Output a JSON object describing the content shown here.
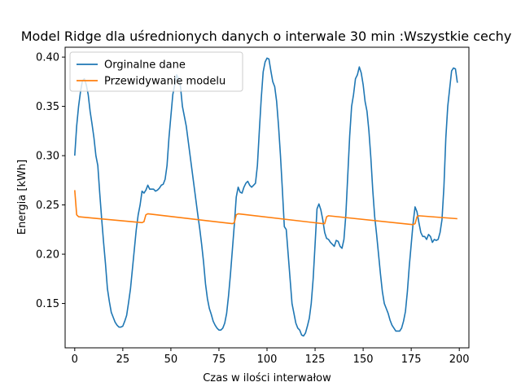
{
  "chart_data": {
    "type": "line",
    "title": "Model Ridge dla uśrednionych danych o interwale 30 min :Wszystkie cechy",
    "xlabel": "Czas w ilości interwałow",
    "ylabel": "Energia [kWh]",
    "xlim": [
      -5,
      205
    ],
    "ylim": [
      0.105,
      0.41
    ],
    "x_ticks": [
      0,
      25,
      50,
      75,
      100,
      125,
      150,
      175,
      200
    ],
    "y_ticks": [
      0.15,
      0.2,
      0.25,
      0.3,
      0.35,
      0.4
    ],
    "grid": false,
    "legend": "top-left",
    "series": [
      {
        "name": "Orginalne dane",
        "color": "#1f77b4",
        "points": [
          [
            0,
            0.3
          ],
          [
            1,
            0.33
          ],
          [
            2,
            0.35
          ],
          [
            3,
            0.365
          ],
          [
            4,
            0.376
          ],
          [
            5,
            0.378
          ],
          [
            6,
            0.372
          ],
          [
            7,
            0.362
          ],
          [
            8,
            0.345
          ],
          [
            9,
            0.332
          ],
          [
            10,
            0.318
          ],
          [
            11,
            0.3
          ],
          [
            12,
            0.29
          ],
          [
            13,
            0.262
          ],
          [
            14,
            0.236
          ],
          [
            15,
            0.212
          ],
          [
            16,
            0.19
          ],
          [
            17,
            0.165
          ],
          [
            18,
            0.152
          ],
          [
            19,
            0.141
          ],
          [
            20,
            0.136
          ],
          [
            21,
            0.131
          ],
          [
            22,
            0.128
          ],
          [
            23,
            0.126
          ],
          [
            24,
            0.126
          ],
          [
            25,
            0.127
          ],
          [
            26,
            0.132
          ],
          [
            27,
            0.138
          ],
          [
            28,
            0.151
          ],
          [
            29,
            0.165
          ],
          [
            30,
            0.185
          ],
          [
            31,
            0.205
          ],
          [
            32,
            0.225
          ],
          [
            33,
            0.24
          ],
          [
            34,
            0.25
          ],
          [
            35,
            0.264
          ],
          [
            36,
            0.262
          ],
          [
            37,
            0.265
          ],
          [
            38,
            0.27
          ],
          [
            39,
            0.266
          ],
          [
            40,
            0.266
          ],
          [
            41,
            0.266
          ],
          [
            42,
            0.264
          ],
          [
            43,
            0.265
          ],
          [
            44,
            0.267
          ],
          [
            45,
            0.27
          ],
          [
            46,
            0.271
          ],
          [
            47,
            0.276
          ],
          [
            48,
            0.29
          ],
          [
            49,
            0.318
          ],
          [
            50,
            0.34
          ],
          [
            51,
            0.362
          ],
          [
            52,
            0.372
          ],
          [
            53,
            0.382
          ],
          [
            54,
            0.378
          ],
          [
            55,
            0.37
          ],
          [
            56,
            0.35
          ],
          [
            57,
            0.34
          ],
          [
            58,
            0.33
          ],
          [
            59,
            0.315
          ],
          [
            60,
            0.3
          ],
          [
            61,
            0.285
          ],
          [
            62,
            0.27
          ],
          [
            63,
            0.255
          ],
          [
            64,
            0.24
          ],
          [
            65,
            0.226
          ],
          [
            66,
            0.21
          ],
          [
            67,
            0.192
          ],
          [
            68,
            0.17
          ],
          [
            69,
            0.155
          ],
          [
            70,
            0.145
          ],
          [
            71,
            0.139
          ],
          [
            72,
            0.132
          ],
          [
            73,
            0.128
          ],
          [
            74,
            0.125
          ],
          [
            75,
            0.123
          ],
          [
            76,
            0.123
          ],
          [
            77,
            0.125
          ],
          [
            78,
            0.13
          ],
          [
            79,
            0.14
          ],
          [
            80,
            0.158
          ],
          [
            81,
            0.18
          ],
          [
            82,
            0.205
          ],
          [
            83,
            0.23
          ],
          [
            84,
            0.258
          ],
          [
            85,
            0.268
          ],
          [
            86,
            0.263
          ],
          [
            87,
            0.262
          ],
          [
            88,
            0.268
          ],
          [
            89,
            0.272
          ],
          [
            90,
            0.274
          ],
          [
            91,
            0.27
          ],
          [
            92,
            0.268
          ],
          [
            93,
            0.27
          ],
          [
            94,
            0.272
          ],
          [
            95,
            0.29
          ],
          [
            96,
            0.325
          ],
          [
            97,
            0.358
          ],
          [
            98,
            0.385
          ],
          [
            99,
            0.395
          ],
          [
            100,
            0.399
          ],
          [
            101,
            0.398
          ],
          [
            102,
            0.386
          ],
          [
            103,
            0.375
          ],
          [
            104,
            0.37
          ],
          [
            105,
            0.355
          ],
          [
            106,
            0.33
          ],
          [
            107,
            0.3
          ],
          [
            108,
            0.265
          ],
          [
            109,
            0.228
          ],
          [
            110,
            0.225
          ],
          [
            111,
            0.2
          ],
          [
            112,
            0.175
          ],
          [
            113,
            0.15
          ],
          [
            114,
            0.14
          ],
          [
            115,
            0.13
          ],
          [
            116,
            0.125
          ],
          [
            117,
            0.123
          ],
          [
            118,
            0.118
          ],
          [
            119,
            0.117
          ],
          [
            120,
            0.12
          ],
          [
            121,
            0.127
          ],
          [
            122,
            0.135
          ],
          [
            123,
            0.15
          ],
          [
            124,
            0.175
          ],
          [
            125,
            0.21
          ],
          [
            126,
            0.246
          ],
          [
            127,
            0.251
          ],
          [
            128,
            0.245
          ],
          [
            129,
            0.235
          ],
          [
            130,
            0.222
          ],
          [
            131,
            0.216
          ],
          [
            132,
            0.215
          ],
          [
            133,
            0.212
          ],
          [
            134,
            0.21
          ],
          [
            135,
            0.208
          ],
          [
            136,
            0.214
          ],
          [
            137,
            0.213
          ],
          [
            138,
            0.208
          ],
          [
            139,
            0.206
          ],
          [
            140,
            0.215
          ],
          [
            141,
            0.24
          ],
          [
            142,
            0.28
          ],
          [
            143,
            0.32
          ],
          [
            144,
            0.35
          ],
          [
            145,
            0.362
          ],
          [
            146,
            0.378
          ],
          [
            147,
            0.382
          ],
          [
            148,
            0.39
          ],
          [
            149,
            0.384
          ],
          [
            150,
            0.372
          ],
          [
            151,
            0.355
          ],
          [
            152,
            0.345
          ],
          [
            153,
            0.325
          ],
          [
            154,
            0.298
          ],
          [
            155,
            0.265
          ],
          [
            156,
            0.238
          ],
          [
            157,
            0.22
          ],
          [
            158,
            0.2
          ],
          [
            159,
            0.18
          ],
          [
            160,
            0.162
          ],
          [
            161,
            0.15
          ],
          [
            162,
            0.145
          ],
          [
            163,
            0.14
          ],
          [
            164,
            0.133
          ],
          [
            165,
            0.128
          ],
          [
            166,
            0.125
          ],
          [
            167,
            0.122
          ],
          [
            168,
            0.122
          ],
          [
            169,
            0.122
          ],
          [
            170,
            0.125
          ],
          [
            171,
            0.132
          ],
          [
            172,
            0.142
          ],
          [
            173,
            0.162
          ],
          [
            174,
            0.188
          ],
          [
            175,
            0.21
          ],
          [
            176,
            0.232
          ],
          [
            177,
            0.248
          ],
          [
            178,
            0.243
          ],
          [
            179,
            0.232
          ],
          [
            180,
            0.222
          ],
          [
            181,
            0.218
          ],
          [
            182,
            0.218
          ],
          [
            183,
            0.215
          ],
          [
            184,
            0.22
          ],
          [
            185,
            0.218
          ],
          [
            186,
            0.212
          ],
          [
            187,
            0.215
          ],
          [
            188,
            0.214
          ],
          [
            189,
            0.215
          ],
          [
            190,
            0.222
          ],
          [
            191,
            0.235
          ],
          [
            192,
            0.268
          ],
          [
            193,
            0.318
          ],
          [
            194,
            0.35
          ],
          [
            195,
            0.368
          ],
          [
            196,
            0.386
          ],
          [
            197,
            0.389
          ],
          [
            198,
            0.388
          ],
          [
            199,
            0.374
          ]
        ]
      },
      {
        "name": "Przewidywanie modelu",
        "color": "#ff7f0e",
        "points": [
          [
            0,
            0.265
          ],
          [
            1,
            0.24
          ],
          [
            2,
            0.238
          ],
          [
            35,
            0.232
          ],
          [
            36,
            0.233
          ],
          [
            37,
            0.24
          ],
          [
            38,
            0.241
          ],
          [
            82,
            0.231
          ],
          [
            83,
            0.232
          ],
          [
            84,
            0.24
          ],
          [
            85,
            0.241
          ],
          [
            129,
            0.231
          ],
          [
            130,
            0.231
          ],
          [
            131,
            0.238
          ],
          [
            132,
            0.239
          ],
          [
            176,
            0.23
          ],
          [
            177,
            0.231
          ],
          [
            178,
            0.238
          ],
          [
            179,
            0.239
          ],
          [
            199,
            0.236
          ]
        ]
      }
    ]
  }
}
